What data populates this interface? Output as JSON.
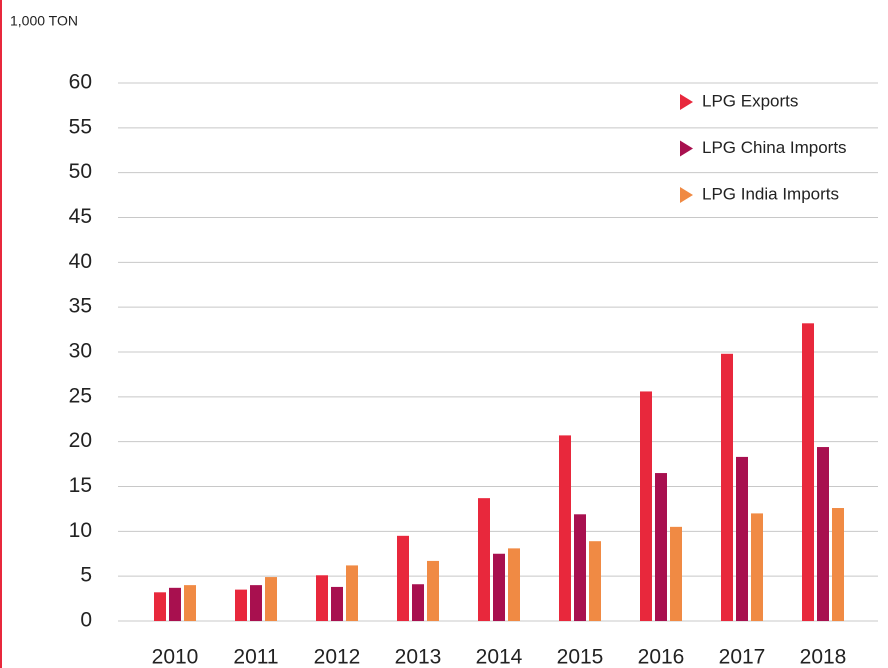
{
  "chart_data": {
    "type": "bar",
    "y_axis_label": "1,000 TON",
    "categories": [
      "2010",
      "2011",
      "2012",
      "2013",
      "2014",
      "2015",
      "2016",
      "2017",
      "2018"
    ],
    "series": [
      {
        "name": "LPG Exports",
        "color": "#e8283c",
        "values": [
          3.2,
          3.5,
          5.1,
          9.5,
          13.7,
          20.7,
          25.6,
          29.8,
          33.2
        ]
      },
      {
        "name": "LPG China Imports",
        "color": "#a8104f",
        "values": [
          3.7,
          4.0,
          3.8,
          4.1,
          7.5,
          11.9,
          16.5,
          18.3,
          19.4
        ]
      },
      {
        "name": "LPG India Imports",
        "color": "#f08a44",
        "values": [
          4.0,
          4.9,
          6.2,
          6.7,
          8.1,
          8.9,
          10.5,
          12.0,
          12.6
        ]
      }
    ],
    "ylim": [
      0,
      60
    ],
    "yticks": [
      0,
      5,
      10,
      15,
      20,
      25,
      30,
      35,
      40,
      45,
      50,
      55,
      60
    ],
    "grid": true,
    "legend": "upper right"
  }
}
